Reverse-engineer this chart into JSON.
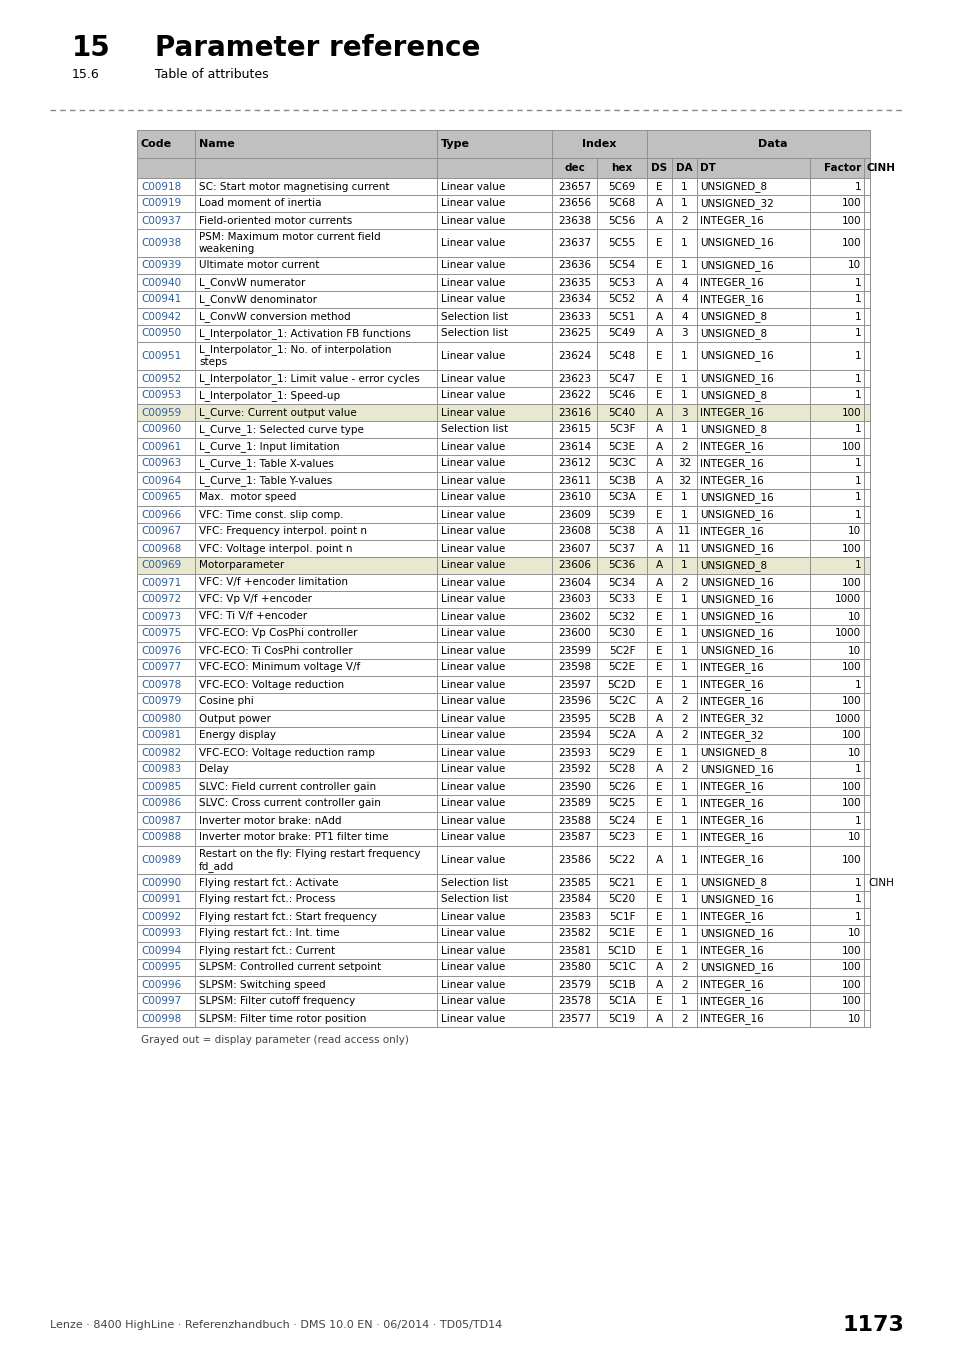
{
  "title_number": "15",
  "title_text": "Parameter reference",
  "subtitle_number": "15.6",
  "subtitle_text": "Table of attributes",
  "footer_text": "Lenze · 8400 HighLine · Referenzhandbuch · DMS 10.0 EN · 06/2014 · TD05/TD14",
  "page_number": "1173",
  "grayed_note": "Grayed out = display parameter (read access only)",
  "rows": [
    [
      "C00918",
      "SC: Start motor magnetising current",
      "Linear value",
      "23657",
      "5C69",
      "E",
      "1",
      "UNSIGNED_8",
      "1",
      ""
    ],
    [
      "C00919",
      "Load moment of inertia",
      "Linear value",
      "23656",
      "5C68",
      "A",
      "1",
      "UNSIGNED_32",
      "100",
      ""
    ],
    [
      "C00937",
      "Field-oriented motor currents",
      "Linear value",
      "23638",
      "5C56",
      "A",
      "2",
      "INTEGER_16",
      "100",
      ""
    ],
    [
      "C00938",
      "PSM: Maximum motor current field weakening",
      "Linear value",
      "23637",
      "5C55",
      "E",
      "1",
      "UNSIGNED_16",
      "100",
      ""
    ],
    [
      "C00939",
      "Ultimate motor current",
      "Linear value",
      "23636",
      "5C54",
      "E",
      "1",
      "UNSIGNED_16",
      "10",
      ""
    ],
    [
      "C00940",
      "L_ConvW numerator",
      "Linear value",
      "23635",
      "5C53",
      "A",
      "4",
      "INTEGER_16",
      "1",
      ""
    ],
    [
      "C00941",
      "L_ConvW denominator",
      "Linear value",
      "23634",
      "5C52",
      "A",
      "4",
      "INTEGER_16",
      "1",
      ""
    ],
    [
      "C00942",
      "L_ConvW conversion method",
      "Selection list",
      "23633",
      "5C51",
      "A",
      "4",
      "UNSIGNED_8",
      "1",
      ""
    ],
    [
      "C00950",
      "L_Interpolator_1: Activation FB functions",
      "Selection list",
      "23625",
      "5C49",
      "A",
      "3",
      "UNSIGNED_8",
      "1",
      ""
    ],
    [
      "C00951",
      "L_Interpolator_1: No. of interpolation steps",
      "Linear value",
      "23624",
      "5C48",
      "E",
      "1",
      "UNSIGNED_16",
      "1",
      ""
    ],
    [
      "C00952",
      "L_Interpolator_1: Limit value - error cycles",
      "Linear value",
      "23623",
      "5C47",
      "E",
      "1",
      "UNSIGNED_16",
      "1",
      ""
    ],
    [
      "C00953",
      "L_Interpolator_1: Speed-up",
      "Linear value",
      "23622",
      "5C46",
      "E",
      "1",
      "UNSIGNED_8",
      "1",
      ""
    ],
    [
      "C00959",
      "L_Curve: Current output value",
      "Linear value",
      "23616",
      "5C40",
      "A",
      "3",
      "INTEGER_16",
      "100",
      ""
    ],
    [
      "C00960",
      "L_Curve_1: Selected curve type",
      "Selection list",
      "23615",
      "5C3F",
      "A",
      "1",
      "UNSIGNED_8",
      "1",
      ""
    ],
    [
      "C00961",
      "L_Curve_1: Input limitation",
      "Linear value",
      "23614",
      "5C3E",
      "A",
      "2",
      "INTEGER_16",
      "100",
      ""
    ],
    [
      "C00963",
      "L_Curve_1: Table X-values",
      "Linear value",
      "23612",
      "5C3C",
      "A",
      "32",
      "INTEGER_16",
      "1",
      ""
    ],
    [
      "C00964",
      "L_Curve_1: Table Y-values",
      "Linear value",
      "23611",
      "5C3B",
      "A",
      "32",
      "INTEGER_16",
      "1",
      ""
    ],
    [
      "C00965",
      "Max.  motor speed",
      "Linear value",
      "23610",
      "5C3A",
      "E",
      "1",
      "UNSIGNED_16",
      "1",
      ""
    ],
    [
      "C00966",
      "VFC: Time const. slip comp.",
      "Linear value",
      "23609",
      "5C39",
      "E",
      "1",
      "UNSIGNED_16",
      "1",
      ""
    ],
    [
      "C00967",
      "VFC: Frequency interpol. point n",
      "Linear value",
      "23608",
      "5C38",
      "A",
      "11",
      "INTEGER_16",
      "10",
      ""
    ],
    [
      "C00968",
      "VFC: Voltage interpol. point n",
      "Linear value",
      "23607",
      "5C37",
      "A",
      "11",
      "UNSIGNED_16",
      "100",
      ""
    ],
    [
      "C00969",
      "Motorparameter",
      "Linear value",
      "23606",
      "5C36",
      "A",
      "1",
      "UNSIGNED_8",
      "1",
      ""
    ],
    [
      "C00971",
      "VFC: V/f +encoder limitation",
      "Linear value",
      "23604",
      "5C34",
      "A",
      "2",
      "UNSIGNED_16",
      "100",
      ""
    ],
    [
      "C00972",
      "VFC: Vp V/f +encoder",
      "Linear value",
      "23603",
      "5C33",
      "E",
      "1",
      "UNSIGNED_16",
      "1000",
      ""
    ],
    [
      "C00973",
      "VFC: Ti V/f +encoder",
      "Linear value",
      "23602",
      "5C32",
      "E",
      "1",
      "UNSIGNED_16",
      "10",
      ""
    ],
    [
      "C00975",
      "VFC-ECO: Vp CosPhi controller",
      "Linear value",
      "23600",
      "5C30",
      "E",
      "1",
      "UNSIGNED_16",
      "1000",
      ""
    ],
    [
      "C00976",
      "VFC-ECO: Ti CosPhi controller",
      "Linear value",
      "23599",
      "5C2F",
      "E",
      "1",
      "UNSIGNED_16",
      "10",
      ""
    ],
    [
      "C00977",
      "VFC-ECO: Minimum voltage V/f",
      "Linear value",
      "23598",
      "5C2E",
      "E",
      "1",
      "INTEGER_16",
      "100",
      ""
    ],
    [
      "C00978",
      "VFC-ECO: Voltage reduction",
      "Linear value",
      "23597",
      "5C2D",
      "E",
      "1",
      "INTEGER_16",
      "1",
      ""
    ],
    [
      "C00979",
      "Cosine phi",
      "Linear value",
      "23596",
      "5C2C",
      "A",
      "2",
      "INTEGER_16",
      "100",
      ""
    ],
    [
      "C00980",
      "Output power",
      "Linear value",
      "23595",
      "5C2B",
      "A",
      "2",
      "INTEGER_32",
      "1000",
      ""
    ],
    [
      "C00981",
      "Energy display",
      "Linear value",
      "23594",
      "5C2A",
      "A",
      "2",
      "INTEGER_32",
      "100",
      ""
    ],
    [
      "C00982",
      "VFC-ECO: Voltage reduction ramp",
      "Linear value",
      "23593",
      "5C29",
      "E",
      "1",
      "UNSIGNED_8",
      "10",
      ""
    ],
    [
      "C00983",
      "Delay",
      "Linear value",
      "23592",
      "5C28",
      "A",
      "2",
      "UNSIGNED_16",
      "1",
      ""
    ],
    [
      "C00985",
      "SLVC: Field current controller gain",
      "Linear value",
      "23590",
      "5C26",
      "E",
      "1",
      "INTEGER_16",
      "100",
      ""
    ],
    [
      "C00986",
      "SLVC: Cross current controller gain",
      "Linear value",
      "23589",
      "5C25",
      "E",
      "1",
      "INTEGER_16",
      "100",
      ""
    ],
    [
      "C00987",
      "Inverter motor brake: nAdd",
      "Linear value",
      "23588",
      "5C24",
      "E",
      "1",
      "INTEGER_16",
      "1",
      ""
    ],
    [
      "C00988",
      "Inverter motor brake: PT1 filter time",
      "Linear value",
      "23587",
      "5C23",
      "E",
      "1",
      "INTEGER_16",
      "10",
      ""
    ],
    [
      "C00989",
      "Restart on the fly: Flying restart frequency fd_add",
      "Linear value",
      "23586",
      "5C22",
      "A",
      "1",
      "INTEGER_16",
      "100",
      ""
    ],
    [
      "C00990",
      "Flying restart fct.: Activate",
      "Selection list",
      "23585",
      "5C21",
      "E",
      "1",
      "UNSIGNED_8",
      "1",
      "CINH"
    ],
    [
      "C00991",
      "Flying restart fct.: Process",
      "Selection list",
      "23584",
      "5C20",
      "E",
      "1",
      "UNSIGNED_16",
      "1",
      ""
    ],
    [
      "C00992",
      "Flying restart fct.: Start frequency",
      "Linear value",
      "23583",
      "5C1F",
      "E",
      "1",
      "INTEGER_16",
      "1",
      ""
    ],
    [
      "C00993",
      "Flying restart fct.: Int. time",
      "Linear value",
      "23582",
      "5C1E",
      "E",
      "1",
      "UNSIGNED_16",
      "10",
      ""
    ],
    [
      "C00994",
      "Flying restart fct.: Current",
      "Linear value",
      "23581",
      "5C1D",
      "E",
      "1",
      "INTEGER_16",
      "100",
      ""
    ],
    [
      "C00995",
      "SLPSM: Controlled current setpoint",
      "Linear value",
      "23580",
      "5C1C",
      "A",
      "2",
      "UNSIGNED_16",
      "100",
      ""
    ],
    [
      "C00996",
      "SLPSM: Switching speed",
      "Linear value",
      "23579",
      "5C1B",
      "A",
      "2",
      "INTEGER_16",
      "100",
      ""
    ],
    [
      "C00997",
      "SLPSM: Filter cutoff frequency",
      "Linear value",
      "23578",
      "5C1A",
      "E",
      "1",
      "INTEGER_16",
      "100",
      ""
    ],
    [
      "C00998",
      "SLPSM: Filter time rotor position",
      "Linear value",
      "23577",
      "5C19",
      "A",
      "2",
      "INTEGER_16",
      "10",
      ""
    ]
  ],
  "highlighted_rows": [
    12,
    21
  ],
  "two_line_rows": [
    3,
    9,
    38
  ],
  "bg_color_header": "#c0c0c0",
  "bg_color_highlight": "#e8e8d0",
  "bg_color_white": "#ffffff",
  "link_color": "#3060a0",
  "border_color": "#909090"
}
